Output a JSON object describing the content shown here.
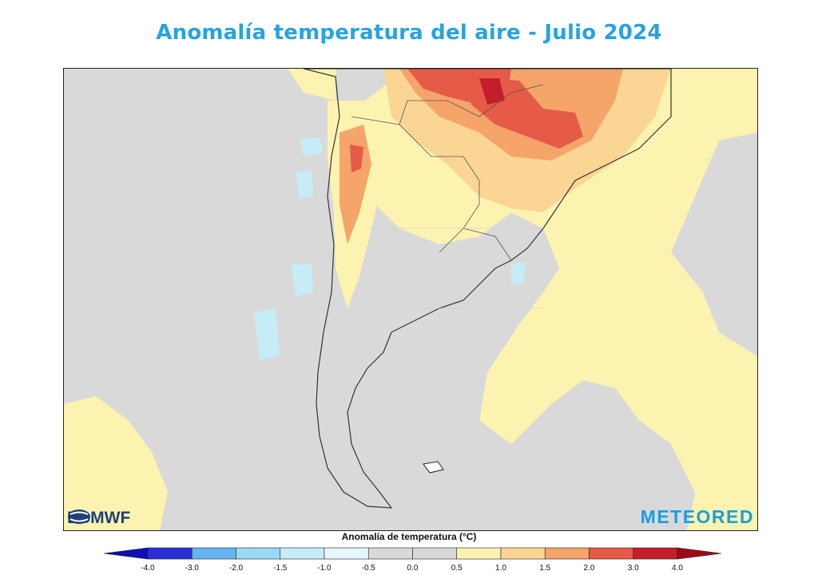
{
  "title": "Anomalía temperatura del aire - Julio 2024",
  "map": {
    "region": "Sudamérica austral",
    "background_color": "#d9d9d9",
    "logos": {
      "left_text": "ECMWF",
      "left_icon": "ecmwf-logo-icon",
      "right_text": "METEORED"
    }
  },
  "legend": {
    "title": "Anomalía de temperatura (°C)",
    "ticks": [
      "-4.0",
      "-3.0",
      "-2.0",
      "-1.5",
      "-1.0",
      "-0.5",
      "0.0",
      "0.5",
      "1.0",
      "1.5",
      "2.0",
      "3.0",
      "4.0"
    ],
    "colors": [
      "#2a2fd3",
      "#3d7bea",
      "#65b5f2",
      "#9ad9f5",
      "#c6ecf8",
      "#e6f6fa",
      "#d9d9d9",
      "#d9d9d9",
      "#fdf3b0",
      "#fbd594",
      "#f5a46a",
      "#e65a48",
      "#c41e2a"
    ],
    "under_color": "#0f0fb8",
    "over_color": "#9c0a1a"
  }
}
